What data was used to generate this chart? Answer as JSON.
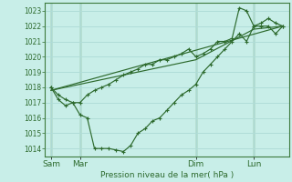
{
  "background_color": "#c8eee8",
  "grid_color": "#b0ddd8",
  "line_color": "#2d6a2d",
  "marker_color": "#2d6a2d",
  "ylabel_min": 1013.5,
  "ylabel_max": 1023.5,
  "xlabel": "Pression niveau de la mer( hPa )",
  "xtick_labels": [
    "Sam",
    "Mar",
    "Dim",
    "Lun"
  ],
  "xtick_positions": [
    0,
    24,
    120,
    168
  ],
  "vline_positions": [
    0,
    24,
    120,
    168
  ],
  "series1_x": [
    0,
    6,
    12,
    18,
    24,
    30,
    36,
    42,
    48,
    54,
    60,
    66,
    72,
    78,
    84,
    90,
    96,
    102,
    108,
    114,
    120,
    126,
    132,
    138,
    144,
    150,
    156,
    162,
    168,
    174,
    180,
    186,
    192
  ],
  "series1_y": [
    1018.0,
    1017.5,
    1017.2,
    1017.0,
    1016.2,
    1016.0,
    1014.0,
    1014.0,
    1014.0,
    1013.9,
    1013.8,
    1014.2,
    1015.0,
    1015.3,
    1015.8,
    1016.0,
    1016.5,
    1017.0,
    1017.5,
    1017.8,
    1018.2,
    1019.0,
    1019.5,
    1020.0,
    1020.5,
    1021.0,
    1021.5,
    1021.0,
    1022.0,
    1022.0,
    1022.0,
    1021.5,
    1022.0
  ],
  "series2_x": [
    0,
    6,
    12,
    18,
    24,
    30,
    36,
    42,
    48,
    54,
    60,
    66,
    72,
    78,
    84,
    90,
    96,
    102,
    108,
    114,
    120,
    126,
    132,
    138,
    144,
    150,
    156,
    162,
    168,
    174,
    180,
    186,
    192
  ],
  "series2_y": [
    1018.0,
    1017.2,
    1016.8,
    1017.0,
    1017.0,
    1017.5,
    1017.8,
    1018.0,
    1018.2,
    1018.5,
    1018.8,
    1019.0,
    1019.2,
    1019.5,
    1019.5,
    1019.8,
    1019.8,
    1020.0,
    1020.2,
    1020.5,
    1020.0,
    1020.2,
    1020.5,
    1021.0,
    1021.0,
    1021.2,
    1023.2,
    1023.0,
    1022.0,
    1022.2,
    1022.5,
    1022.2,
    1022.0
  ],
  "series3_x": [
    0,
    192
  ],
  "series3_y": [
    1017.8,
    1022.0
  ],
  "series4_x": [
    0,
    120,
    168,
    192
  ],
  "series4_y": [
    1017.8,
    1019.8,
    1021.8,
    1022.0
  ],
  "xlim_min": -5,
  "xlim_max": 197,
  "figsize": [
    3.2,
    2.0
  ],
  "dpi": 100
}
